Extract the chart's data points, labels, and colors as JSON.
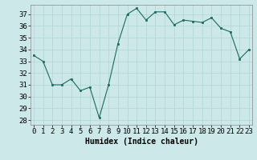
{
  "x": [
    0,
    1,
    2,
    3,
    4,
    5,
    6,
    7,
    8,
    9,
    10,
    11,
    12,
    13,
    14,
    15,
    16,
    17,
    18,
    19,
    20,
    21,
    22,
    23
  ],
  "y": [
    33.5,
    33.0,
    31.0,
    31.0,
    31.5,
    30.5,
    30.8,
    28.2,
    31.0,
    34.5,
    37.0,
    37.5,
    36.5,
    37.2,
    37.2,
    36.1,
    36.5,
    36.4,
    36.3,
    36.7,
    35.8,
    35.5,
    33.2,
    34.0
  ],
  "line_color": "#1a6b5e",
  "marker_color": "#1a6b5e",
  "bg_color": "#cce8e8",
  "grid_color": "#b0d4d4",
  "xlabel": "Humidex (Indice chaleur)",
  "ylabel_ticks": [
    28,
    29,
    30,
    31,
    32,
    33,
    34,
    35,
    36,
    37
  ],
  "xtick_labels": [
    "0",
    "1",
    "2",
    "3",
    "4",
    "5",
    "6",
    "7",
    "8",
    "9",
    "10",
    "11",
    "12",
    "13",
    "14",
    "15",
    "16",
    "17",
    "18",
    "19",
    "20",
    "21",
    "22",
    "23"
  ],
  "ylim": [
    27.6,
    37.8
  ],
  "xlim": [
    -0.3,
    23.3
  ],
  "xlabel_fontsize": 7,
  "tick_fontsize": 6.5
}
